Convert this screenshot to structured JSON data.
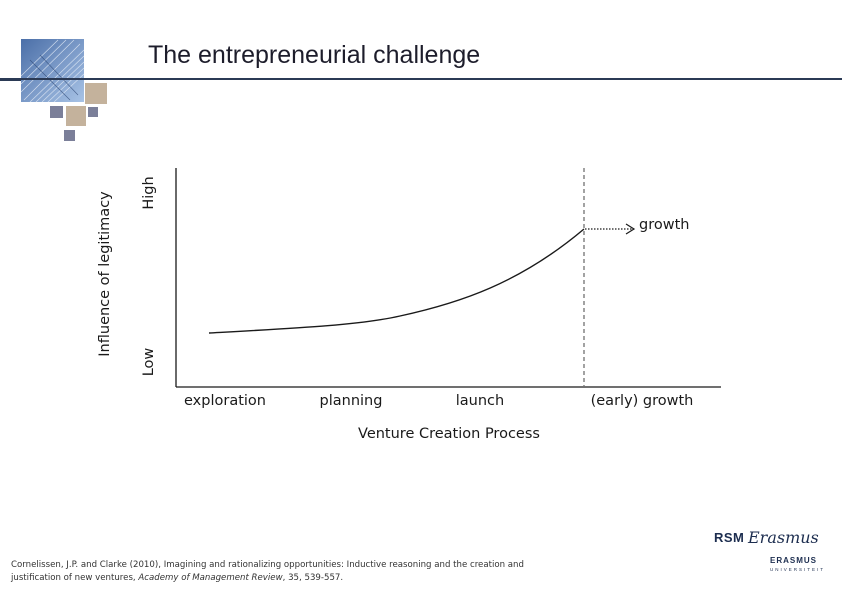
{
  "slide": {
    "title": "The entrepreneurial challenge"
  },
  "diagram": {
    "y_axis_title": "Influence of legitimacy",
    "y_high_label": "High",
    "y_low_label": "Low",
    "x_axis_title": "Venture Creation Process",
    "stages": [
      "exploration",
      "planning",
      "launch",
      "(early) growth"
    ],
    "growth_label": "growth"
  },
  "citation": {
    "text_before": "Cornelissen, J.P. and Clarke (2010), Imagining and rationalizing opportunities: Inductive reasoning and the creation and justification of new ventures, ",
    "journal": "Academy of Management Review",
    "text_after": ", 35, 539-557."
  },
  "branding": {
    "rsm": "RSM",
    "erasmus_script": "Erasmus",
    "erasmus": "ERASMUS",
    "universiteit": "UNIVERSITEIT",
    "colors": {
      "navy": "#1c2d4f",
      "tan": "#c4b29c",
      "slate": "#7b7f99"
    }
  }
}
